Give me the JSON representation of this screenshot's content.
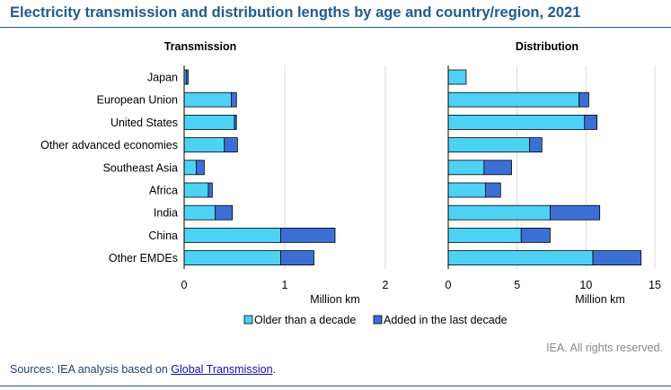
{
  "title": "Electricity transmission and distribution lengths by age and country/region, 2021",
  "footer": {
    "credit": "IEA. All rights reserved.",
    "sources_prefix": "Sources: IEA analysis based on ",
    "sources_link": "Global Transmission",
    "sources_suffix": "."
  },
  "colors": {
    "older": "#4dd2f5",
    "added": "#3c6fd6",
    "outline": "#000000",
    "grid": "#d9d9d9"
  },
  "legend": {
    "older": "Older than a decade",
    "added": "Added in the last decade",
    "placement": "bottom-center"
  },
  "chart_data": [
    {
      "type": "bar",
      "orientation": "horizontal",
      "stacked": true,
      "title": "Transmission",
      "xlabel": "Million km",
      "xlim": [
        0,
        2
      ],
      "xticks": [
        0,
        1,
        2
      ],
      "categories": [
        "Japan",
        "European Union",
        "United States",
        "Other advanced economies",
        "Southeast Asia",
        "Africa",
        "India",
        "China",
        "Other EMDEs"
      ],
      "series": [
        {
          "name": "Older than a decade",
          "values": [
            0.02,
            0.47,
            0.5,
            0.4,
            0.12,
            0.24,
            0.31,
            0.96,
            0.96
          ]
        },
        {
          "name": "Added in the last decade",
          "values": [
            0.02,
            0.05,
            0.02,
            0.13,
            0.08,
            0.04,
            0.17,
            0.54,
            0.33
          ]
        }
      ]
    },
    {
      "type": "bar",
      "orientation": "horizontal",
      "stacked": true,
      "title": "Distribution",
      "xlabel": "Million km",
      "xlim": [
        0,
        15
      ],
      "xticks": [
        0,
        5,
        10,
        15
      ],
      "categories": [
        "Japan",
        "European Union",
        "United States",
        "Other advanced economies",
        "Southeast Asia",
        "Africa",
        "India",
        "China",
        "Other EMDEs"
      ],
      "series": [
        {
          "name": "Older than a decade",
          "values": [
            1.3,
            9.5,
            9.9,
            5.9,
            2.6,
            2.7,
            7.4,
            5.3,
            10.5
          ]
        },
        {
          "name": "Added in the last decade",
          "values": [
            0.0,
            0.7,
            0.9,
            0.9,
            2.0,
            1.1,
            3.6,
            2.1,
            3.5
          ]
        }
      ]
    }
  ]
}
